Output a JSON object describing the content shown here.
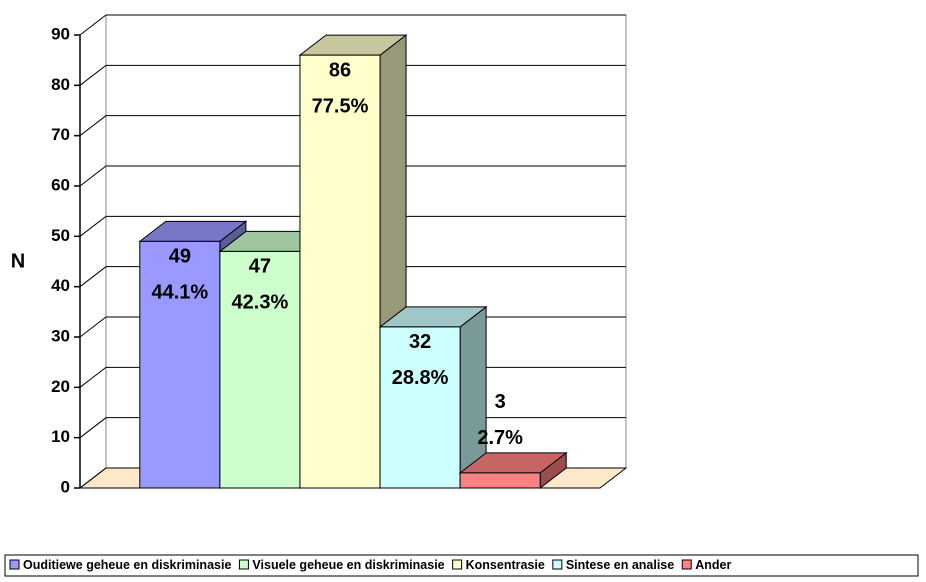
{
  "chart_data": {
    "type": "bar",
    "y_label": "N",
    "categories": [
      null
    ],
    "series": [
      {
        "name": "Ouditiewe geheue en diskriminasie",
        "color": "#9999ff",
        "values": [
          49
        ],
        "share_labels": [
          "44.1%"
        ]
      },
      {
        "name": "Visuele geheue en diskriminasie",
        "color": "#ccffcc",
        "values": [
          47
        ],
        "share_labels": [
          "42.3%"
        ]
      },
      {
        "name": "Konsentrasie",
        "color": "#ffffcc",
        "values": [
          86
        ],
        "share_labels": [
          "77.5%"
        ]
      },
      {
        "name": "Sintese en analise",
        "color": "#ccffff",
        "values": [
          32
        ],
        "share_labels": [
          "28.8%"
        ]
      },
      {
        "name": "Ander",
        "color": "#ff8080",
        "values": [
          3
        ],
        "share_labels": [
          "2.7%"
        ]
      }
    ],
    "ylim": [
      0,
      90
    ],
    "yticks": [
      0,
      10,
      20,
      30,
      40,
      50,
      60,
      70,
      80,
      90
    ],
    "grid": true,
    "legend": "bottom"
  }
}
